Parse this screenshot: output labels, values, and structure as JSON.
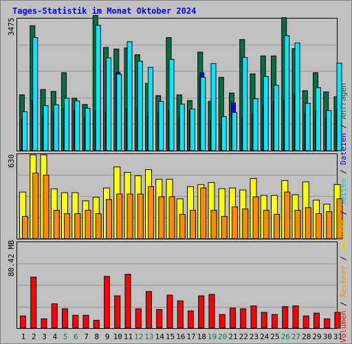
{
  "title": "Tages-Statistik im Monat Oktober 2024",
  "colors": {
    "background": "#c0c0c0",
    "title": "#0000ff",
    "anfragen": "#006f45",
    "dateien": "#0000ff",
    "seiten": "#00e8ff",
    "besuche": "#ffff00",
    "rechner": "#ff8c00",
    "volumen": "#ff0000",
    "weekend_day": "#00805c",
    "weekday": "#000000"
  },
  "chart_data": [
    {
      "type": "bar",
      "panel": "top",
      "ymax_label": "3475",
      "ylim": [
        0,
        3475
      ],
      "categories": [
        "1",
        "2",
        "3",
        "4",
        "5",
        "6",
        "7",
        "8",
        "9",
        "10",
        "11",
        "12",
        "13",
        "14",
        "15",
        "16",
        "17",
        "18",
        "19",
        "20",
        "21",
        "22",
        "23",
        "24",
        "25",
        "26",
        "27",
        "28",
        "29",
        "30",
        "31"
      ],
      "weekend_days": [
        5,
        6,
        12,
        13,
        19,
        20,
        26,
        27
      ],
      "series": [
        {
          "name": "Anfragen",
          "values": [
            1460,
            3270,
            1600,
            1550,
            2040,
            1370,
            1210,
            3540,
            2700,
            2660,
            2690,
            2510,
            1760,
            1440,
            2960,
            1460,
            1310,
            2580,
            1290,
            1920,
            1510,
            2910,
            2010,
            2480,
            2480,
            3480,
            2670,
            1570,
            2040,
            1540,
            1410
          ]
        },
        {
          "name": "Dateien",
          "values": [
            810,
            1310,
            910,
            1010,
            1090,
            1030,
            870,
            1030,
            1010,
            2050,
            1100,
            1120,
            910,
            990,
            1070,
            870,
            1050,
            2040,
            800,
            700,
            1250,
            870,
            970,
            1190,
            1290,
            1320,
            1490,
            970,
            1020,
            860,
            1060
          ]
        },
        {
          "name": "Seiten",
          "values": [
            1020,
            2960,
            1180,
            1200,
            1370,
            1300,
            1110,
            3280,
            2430,
            2000,
            2850,
            2340,
            2180,
            1290,
            2390,
            1220,
            1090,
            1920,
            2280,
            890,
            1000,
            2440,
            1360,
            1940,
            1710,
            3010,
            2820,
            1240,
            1650,
            1050,
            2290
          ]
        }
      ]
    },
    {
      "type": "bar",
      "panel": "middle",
      "ymax_label": "630",
      "ylim": [
        0,
        630
      ],
      "categories": [
        "1",
        "2",
        "3",
        "4",
        "5",
        "6",
        "7",
        "8",
        "9",
        "10",
        "11",
        "12",
        "13",
        "14",
        "15",
        "16",
        "17",
        "18",
        "19",
        "20",
        "21",
        "22",
        "23",
        "24",
        "25",
        "26",
        "27",
        "28",
        "29",
        "30",
        "31"
      ],
      "series": [
        {
          "name": "Besuche",
          "values": [
            345,
            620,
            620,
            368,
            340,
            340,
            280,
            305,
            375,
            530,
            490,
            465,
            510,
            440,
            440,
            295,
            385,
            400,
            415,
            370,
            375,
            360,
            445,
            320,
            320,
            430,
            325,
            420,
            285,
            255,
            400
          ]
        },
        {
          "name": "Rechner",
          "values": [
            165,
            485,
            470,
            210,
            185,
            185,
            210,
            185,
            290,
            330,
            330,
            330,
            385,
            310,
            310,
            180,
            210,
            375,
            210,
            165,
            235,
            220,
            310,
            210,
            180,
            345,
            210,
            230,
            185,
            200,
            295
          ]
        }
      ]
    },
    {
      "type": "bar",
      "panel": "bottom",
      "ymax_label": "80.42 MB",
      "ylim": [
        0,
        80.42
      ],
      "categories": [
        "1",
        "2",
        "3",
        "4",
        "5",
        "6",
        "7",
        "8",
        "9",
        "10",
        "11",
        "12",
        "13",
        "14",
        "15",
        "16",
        "17",
        "18",
        "19",
        "20",
        "21",
        "22",
        "23",
        "24",
        "25",
        "26",
        "27",
        "28",
        "29",
        "30",
        "31"
      ],
      "series": [
        {
          "name": "Volumen",
          "values": [
            17,
            71,
            13,
            34,
            27,
            18,
            18,
            11,
            72,
            45,
            75,
            27,
            51,
            26,
            46,
            38,
            24,
            45,
            47,
            19,
            28,
            27,
            31,
            22,
            19,
            30,
            31,
            17,
            21,
            13,
            22
          ]
        }
      ]
    }
  ],
  "legend": {
    "anfragen": "Anfragen",
    "dateien": "Dateien",
    "seiten": "Seiten",
    "besuche": "Besuche",
    "rechner": "Rechner",
    "volumen": "Volumen",
    "separator": " / "
  }
}
